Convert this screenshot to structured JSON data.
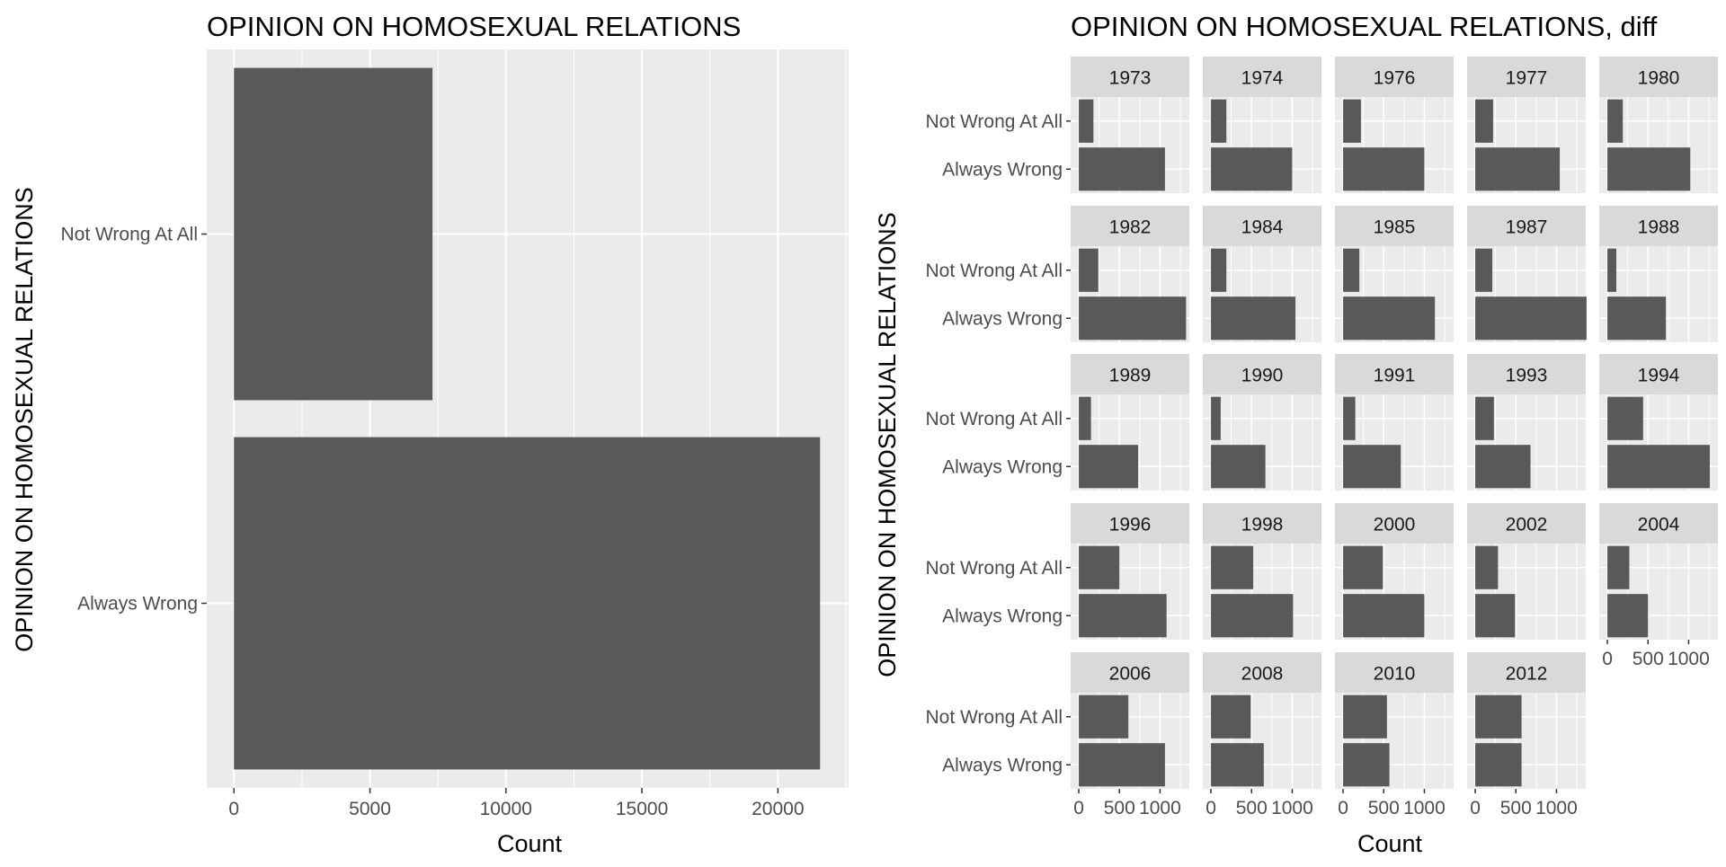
{
  "left_chart": {
    "title": "OPINION ON HOMOSEXUAL RELATIONS",
    "xlabel": "Count",
    "ylabel": "OPINION ON HOMOSEXUAL RELATIONS"
  },
  "right_chart": {
    "title": "OPINION ON HOMOSEXUAL RELATIONS, diff",
    "xlabel": "Count",
    "ylabel": "OPINION ON HOMOSEXUAL RELATIONS"
  },
  "chart_data": [
    {
      "type": "bar",
      "orientation": "horizontal",
      "title": "OPINION ON HOMOSEXUAL RELATIONS",
      "xlabel": "Count",
      "ylabel": "OPINION ON HOMOSEXUAL RELATIONS",
      "categories": [
        "Not Wrong At All",
        "Always Wrong"
      ],
      "values": [
        7300,
        21550
      ],
      "xlim": [
        -1000,
        22600
      ],
      "x_ticks": [
        0,
        5000,
        10000,
        15000,
        20000
      ],
      "x_tick_labels": [
        "0",
        "5000",
        "10000",
        "15000",
        "20000"
      ],
      "grid": true,
      "bar_color": "#595959",
      "panel_bg": "#ebebeb"
    },
    {
      "type": "bar",
      "orientation": "horizontal",
      "faceted": true,
      "title": "OPINION ON HOMOSEXUAL RELATIONS, diff",
      "xlabel": "Count",
      "ylabel": "OPINION ON HOMOSEXUAL RELATIONS",
      "categories": [
        "Not Wrong At All",
        "Always Wrong"
      ],
      "xlim": [
        -100,
        1360
      ],
      "x_ticks": [
        0,
        500,
        1000
      ],
      "x_tick_labels": [
        "0",
        "500",
        "1000"
      ],
      "grid": true,
      "bar_color": "#595959",
      "strip_bg": "#d9d9d9",
      "panel_bg": "#ebebeb",
      "facets": [
        {
          "label": "1973",
          "values": [
            180,
            1060
          ]
        },
        {
          "label": "1974",
          "values": [
            190,
            1000
          ]
        },
        {
          "label": "1976",
          "values": [
            220,
            1000
          ]
        },
        {
          "label": "1977",
          "values": [
            220,
            1040
          ]
        },
        {
          "label": "1980",
          "values": [
            190,
            1020
          ]
        },
        {
          "label": "1982",
          "values": [
            240,
            1320
          ]
        },
        {
          "label": "1984",
          "values": [
            190,
            1040
          ]
        },
        {
          "label": "1985",
          "values": [
            200,
            1130
          ]
        },
        {
          "label": "1987",
          "values": [
            210,
            1370
          ]
        },
        {
          "label": "1988",
          "values": [
            110,
            720
          ]
        },
        {
          "label": "1989",
          "values": [
            150,
            730
          ]
        },
        {
          "label": "1990",
          "values": [
            120,
            670
          ]
        },
        {
          "label": "1991",
          "values": [
            150,
            710
          ]
        },
        {
          "label": "1993",
          "values": [
            230,
            680
          ]
        },
        {
          "label": "1994",
          "values": [
            440,
            1260
          ]
        },
        {
          "label": "1996",
          "values": [
            500,
            1080
          ]
        },
        {
          "label": "1998",
          "values": [
            520,
            1010
          ]
        },
        {
          "label": "2000",
          "values": [
            490,
            1000
          ]
        },
        {
          "label": "2002",
          "values": [
            280,
            490
          ]
        },
        {
          "label": "2004",
          "values": [
            270,
            500
          ]
        },
        {
          "label": "2006",
          "values": [
            610,
            1060
          ]
        },
        {
          "label": "2008",
          "values": [
            490,
            650
          ]
        },
        {
          "label": "2010",
          "values": [
            540,
            570
          ]
        },
        {
          "label": "2012",
          "values": [
            570,
            570
          ]
        }
      ]
    }
  ]
}
